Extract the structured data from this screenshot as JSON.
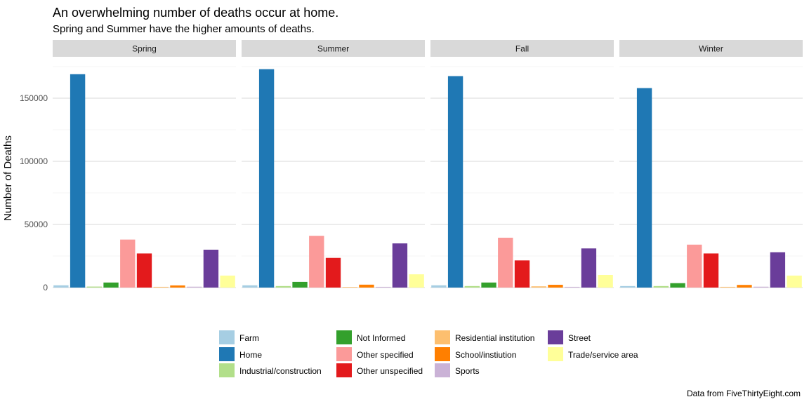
{
  "title": "An overwhelming number of deaths occur at home.",
  "subtitle": "Spring and Summer have the higher amounts of deaths.",
  "caption": "Data from FiveThirtyEight.com",
  "chart_data": {
    "type": "bar",
    "facets": [
      "Spring",
      "Summer",
      "Fall",
      "Winter"
    ],
    "categories": [
      "Farm",
      "Home",
      "Industrial/construction",
      "Not Informed",
      "Other specified",
      "Other unspecified",
      "Residential institution",
      "School/instiution",
      "Sports",
      "Street",
      "Trade/service area"
    ],
    "colors": [
      "#a6cee3",
      "#1f78b4",
      "#b2df8a",
      "#33a02c",
      "#fb9a99",
      "#e31a1c",
      "#fdbf6f",
      "#ff7f00",
      "#cab2d6",
      "#6a3d9a",
      "#ffff99"
    ],
    "series": [
      {
        "name": "Spring",
        "values": [
          1800,
          169000,
          800,
          4000,
          38000,
          27000,
          600,
          1700,
          700,
          30000,
          9500
        ]
      },
      {
        "name": "Summer",
        "values": [
          1800,
          173000,
          1200,
          4500,
          41000,
          23500,
          500,
          2300,
          600,
          35000,
          10500
        ]
      },
      {
        "name": "Fall",
        "values": [
          1800,
          167500,
          1200,
          4000,
          39500,
          21500,
          1000,
          2200,
          600,
          31000,
          10000
        ]
      },
      {
        "name": "Winter",
        "values": [
          1200,
          158000,
          1200,
          3500,
          34000,
          27000,
          600,
          2100,
          700,
          28000,
          9500
        ]
      }
    ],
    "ylabel": "Number of Deaths",
    "xlabel": "",
    "ylim": [
      0,
      180000
    ],
    "yticks": [
      0,
      50000,
      100000,
      150000
    ],
    "ytick_labels": [
      "0",
      "50000",
      "100000",
      "150000"
    ],
    "grid": true,
    "legend_position": "bottom"
  }
}
